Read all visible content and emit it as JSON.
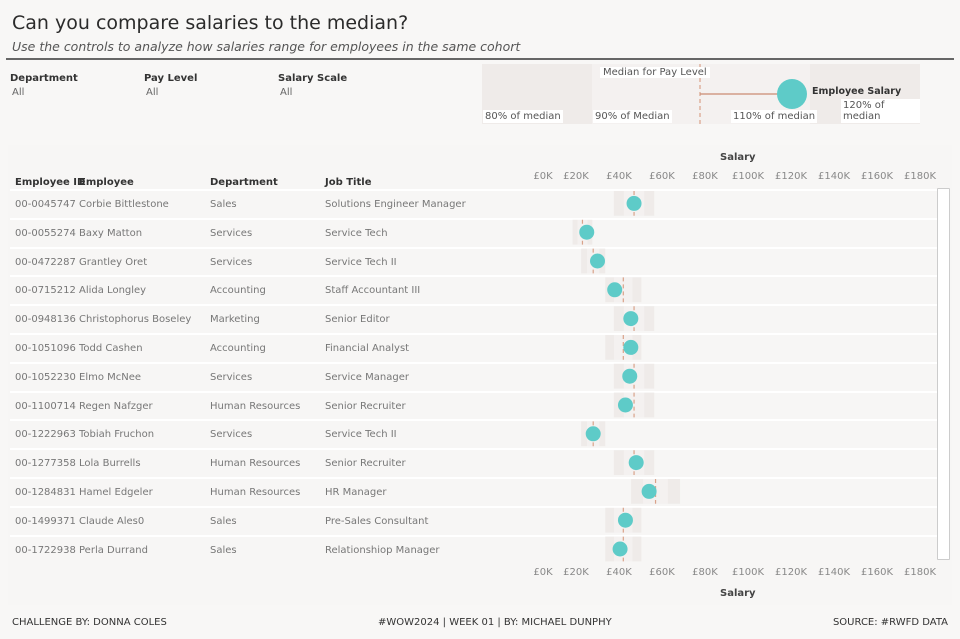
{
  "header": {
    "title": "Can you compare salaries to the median?",
    "subtitle": "Use the controls to analyze how salaries range for employees in the same cohort"
  },
  "filters": [
    {
      "label": "Department",
      "value": "All"
    },
    {
      "label": "Pay Level",
      "value": "All"
    },
    {
      "label": "Salary Scale",
      "value": "All"
    }
  ],
  "legend": {
    "median_label": "Median for Pay Level",
    "employee_label": "Employee Salary",
    "bands": [
      "80% of median",
      "90% of Median",
      "110% of median",
      "120% of median"
    ]
  },
  "table": {
    "columns": [
      "Employee ID",
      "Employee",
      "Department",
      "Job Title"
    ]
  },
  "colors": {
    "dot": "#5ecbc8",
    "median": "#d9a28a",
    "band_outer": "#efebe9",
    "band_inner": "#f4f1f0",
    "background": "#f8f7f6"
  },
  "chart_data": {
    "type": "scatter",
    "title": "",
    "xlabel": "Salary",
    "x_ticks": [
      "£0K",
      "£20K",
      "£40K",
      "£60K",
      "£80K",
      "£100K",
      "£120K",
      "£140K",
      "£160K",
      "£180K"
    ],
    "xlim": [
      0,
      180
    ],
    "units": "£K",
    "rows": [
      {
        "id": "00-0045747",
        "employee": "Corbie Bittlestone",
        "department": "Sales",
        "job_title": "Solutions Engineer Manager",
        "median": 47,
        "salary": 47
      },
      {
        "id": "00-0055274",
        "employee": "Baxy Matton",
        "department": "Services",
        "job_title": "Service Tech",
        "median": 23,
        "salary": 25
      },
      {
        "id": "00-0472287",
        "employee": "Grantley Oret",
        "department": "Services",
        "job_title": "Service Tech II",
        "median": 28,
        "salary": 30
      },
      {
        "id": "00-0715212",
        "employee": "Alida Longley",
        "department": "Accounting",
        "job_title": "Staff Accountant III",
        "median": 42,
        "salary": 38
      },
      {
        "id": "00-0948136",
        "employee": "Christophorus Boseley",
        "department": "Marketing",
        "job_title": "Senior Editor",
        "median": 47,
        "salary": 45.5
      },
      {
        "id": "00-1051096",
        "employee": "Todd Cashen",
        "department": "Accounting",
        "job_title": "Financial Analyst",
        "median": 42,
        "salary": 45.5
      },
      {
        "id": "00-1052230",
        "employee": "Elmo McNee",
        "department": "Services",
        "job_title": "Service Manager",
        "median": 47,
        "salary": 45
      },
      {
        "id": "00-1100714",
        "employee": "Regen Nafzger",
        "department": "Human Resources",
        "job_title": "Senior Recruiter",
        "median": 47,
        "salary": 43
      },
      {
        "id": "00-1222963",
        "employee": "Tobiah Fruchon",
        "department": "Services",
        "job_title": "Service Tech II",
        "median": 28,
        "salary": 28
      },
      {
        "id": "00-1277358",
        "employee": "Lola Burrells",
        "department": "Human Resources",
        "job_title": "Senior Recruiter",
        "median": 47,
        "salary": 48
      },
      {
        "id": "00-1284831",
        "employee": "Hamel Edgeler",
        "department": "Human Resources",
        "job_title": "HR Manager",
        "median": 57,
        "salary": 54
      },
      {
        "id": "00-1499371",
        "employee": "Claude Ales0",
        "department": "Sales",
        "job_title": "Pre-Sales Consultant",
        "median": 42,
        "salary": 43
      },
      {
        "id": "00-1722938",
        "employee": "Perla Durrand",
        "department": "Sales",
        "job_title": "Relationshiop Manager",
        "median": 42,
        "salary": 40.5
      }
    ]
  },
  "footer": {
    "left": "CHALLENGE BY: DONNA COLES",
    "center": "#WOW2024 | WEEK 01 | BY: MICHAEL DUNPHY",
    "right": "SOURCE: #RWFD DATA"
  }
}
